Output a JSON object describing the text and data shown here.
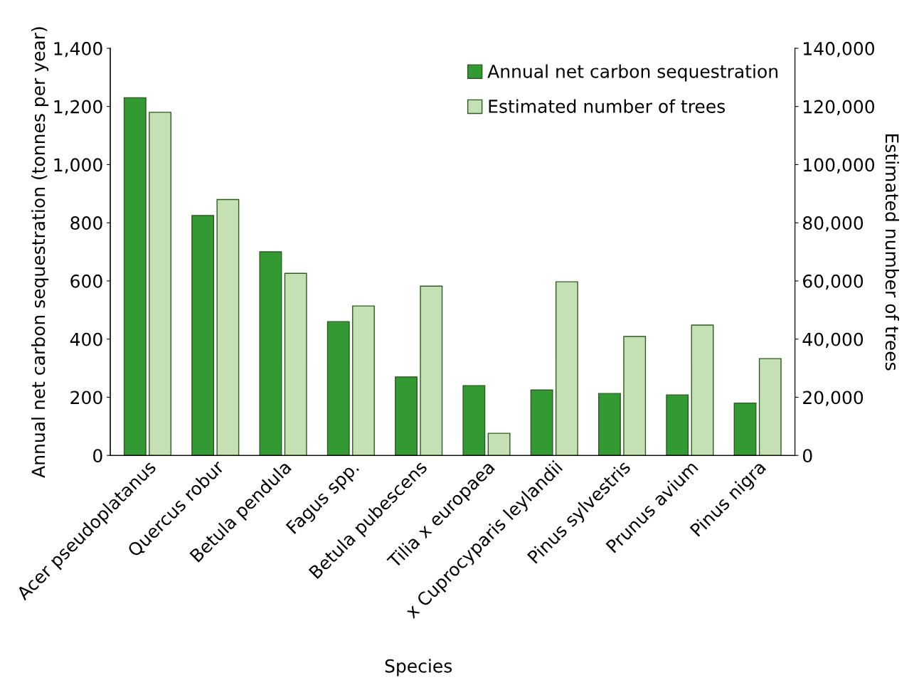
{
  "chart_data": {
    "type": "bar",
    "xlabel": "Species",
    "ylabel": "Annual net carbon sequestration (tonnes per year)",
    "y2label": "Estimated number of trees",
    "categories": [
      "Acer pseudoplatanus",
      "Quercus robur",
      "Betula pendula",
      "Fagus spp.",
      "Betula pubescens",
      "Tilia x europaea",
      "x Cuprocyparis leylandii",
      "Pinus sylvestris",
      "Prunus avium",
      "Pinus nigra"
    ],
    "series": [
      {
        "name": "Annual net carbon sequestration",
        "color": "#339933",
        "values": [
          1230,
          825,
          700,
          460,
          270,
          240,
          225,
          213,
          208,
          180
        ]
      },
      {
        "name": "Estimated number of trees",
        "color": "#c5e0b4",
        "axis": "y2",
        "values": [
          118000,
          88000,
          62600,
          51400,
          58200,
          7600,
          59700,
          40900,
          44800,
          33300
        ]
      }
    ],
    "ylim": [
      0,
      1400
    ],
    "yticks": [
      0,
      200,
      400,
      600,
      800,
      {
        "value": 1000,
        "label": "1,000"
      },
      {
        "value": 1200,
        "label": "1,200"
      },
      {
        "value": 1400,
        "label": "1,400"
      }
    ],
    "y2lim": [
      0,
      140000
    ],
    "y2ticks": [
      0,
      {
        "value": 20000,
        "label": "20,000"
      },
      {
        "value": 40000,
        "label": "40,000"
      },
      {
        "value": 60000,
        "label": "60,000"
      },
      {
        "value": 80000,
        "label": "80,000"
      },
      {
        "value": 100000,
        "label": "100,000"
      },
      {
        "value": 120000,
        "label": "120,000"
      },
      {
        "value": 140000,
        "label": "140,000"
      }
    ],
    "grid": false,
    "legend": "top right"
  }
}
